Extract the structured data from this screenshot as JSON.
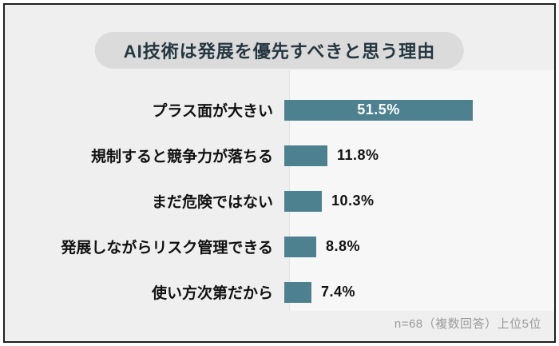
{
  "title": {
    "text": "AI技術は発展を優先すべきと思う理由",
    "pill_background": "#dbdbdb",
    "text_color": "#24363f"
  },
  "footer": {
    "note": "n=68（複数回答）上位5位",
    "color": "#9a9a9a"
  },
  "chart_data": {
    "type": "bar",
    "orientation": "horizontal",
    "title": "AI技術は発展を優先すべきと思う理由",
    "categories": [
      "プラス面が大きい",
      "規制すると競争力が落ちる",
      "まだ危険ではない",
      "発展しながらリスク管理できる",
      "使い方次第だから"
    ],
    "values": [
      51.5,
      11.8,
      10.3,
      8.8,
      7.4
    ],
    "value_labels": [
      "51.5%",
      "11.8%",
      "10.3%",
      "8.8%",
      "7.4%"
    ],
    "bar_color": "#4e818f",
    "xlim": [
      0,
      55
    ],
    "grid": false,
    "legend": "none",
    "note": "n=68（複数回答）上位5位"
  }
}
